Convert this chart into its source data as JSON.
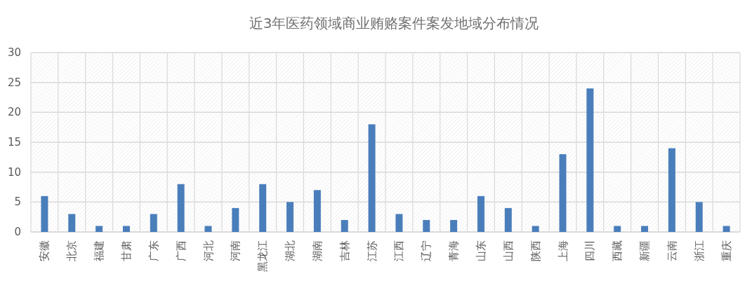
{
  "chart_data": {
    "type": "bar",
    "title": "近3年医药领域商业贿赂案件案发地域分布情况",
    "categories": [
      "安徽",
      "北京",
      "福建",
      "甘肃",
      "广东",
      "广西",
      "河北",
      "河南",
      "黑龙江",
      "湖北",
      "湖南",
      "吉林",
      "江苏",
      "江西",
      "辽宁",
      "青海",
      "山东",
      "山西",
      "陕西",
      "上海",
      "四川",
      "西藏",
      "新疆",
      "云南",
      "浙江",
      "重庆"
    ],
    "values": [
      6,
      3,
      1,
      1,
      3,
      8,
      1,
      4,
      8,
      5,
      7,
      2,
      18,
      3,
      2,
      2,
      6,
      4,
      1,
      13,
      24,
      1,
      1,
      14,
      5,
      1
    ],
    "color": "#4a7ebb",
    "ylim": [
      0,
      30
    ],
    "yticks": [
      0,
      5,
      10,
      15,
      20,
      25,
      30
    ],
    "grid": true
  }
}
